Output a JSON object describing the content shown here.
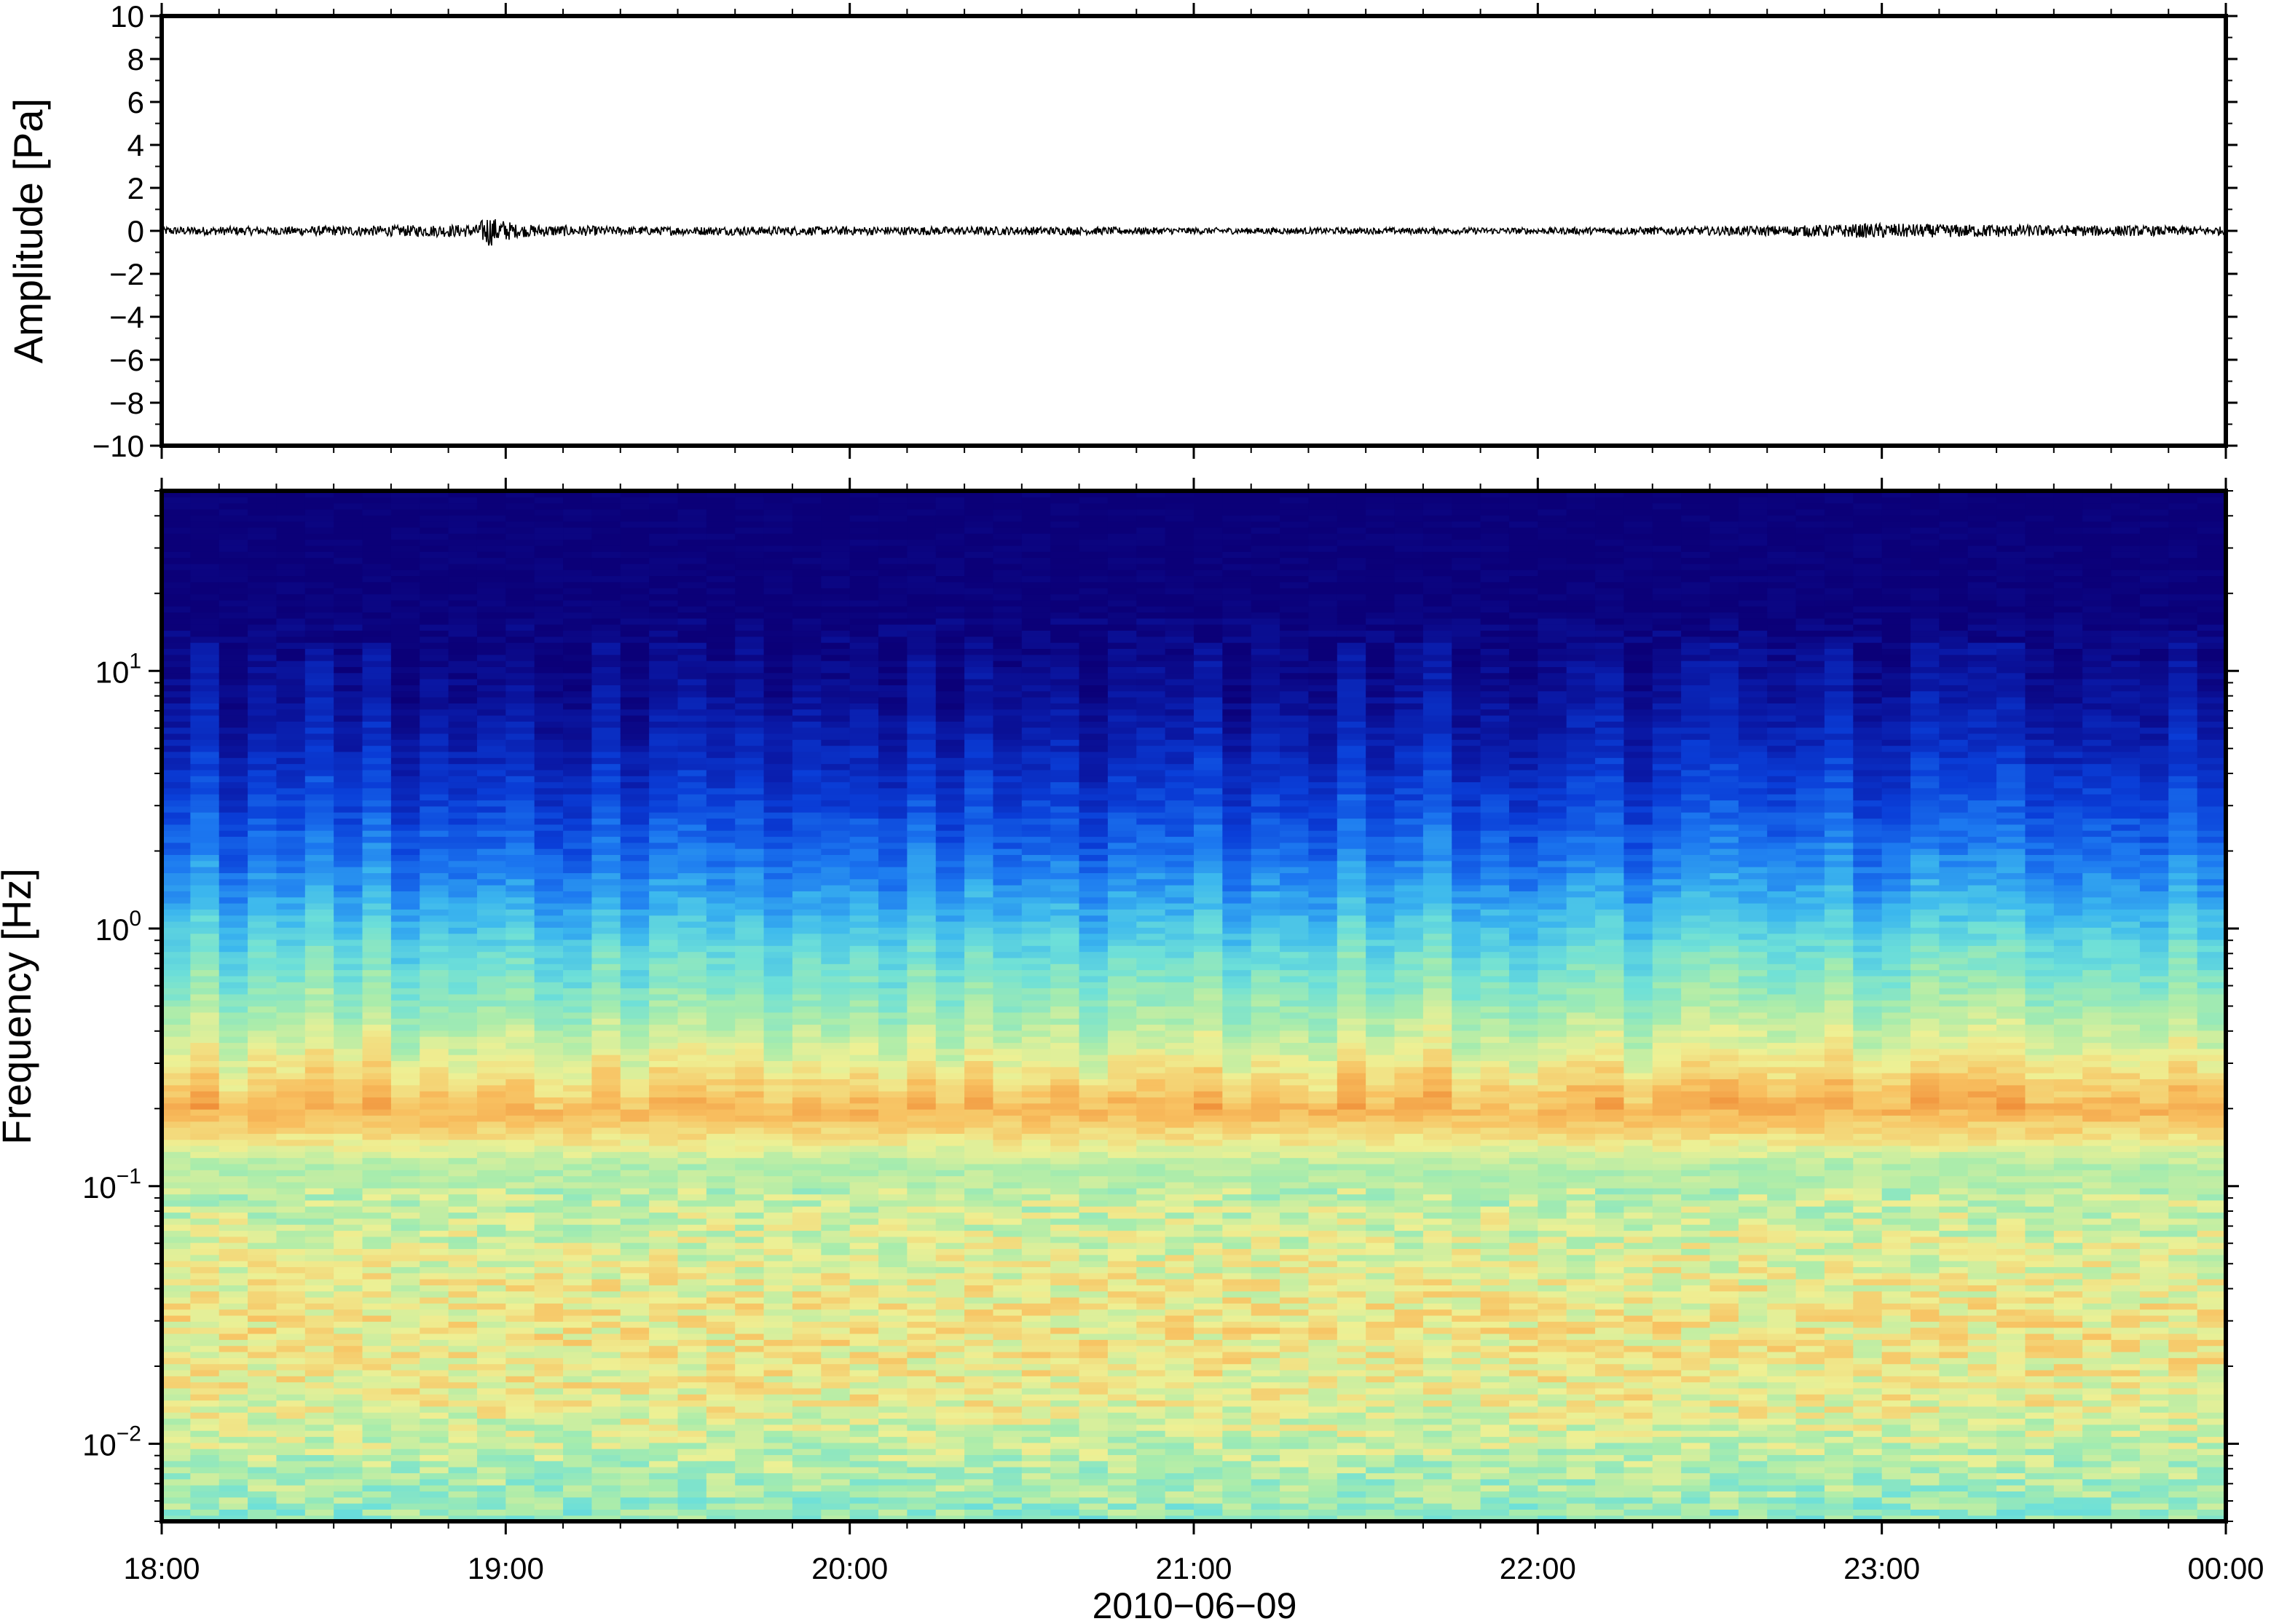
{
  "chart_data": [
    {
      "type": "line",
      "panel": "waveform",
      "xlabel": "",
      "ylabel": "Amplitude [Pa]",
      "ylim": [
        -10,
        10
      ],
      "yticks": [
        10,
        8,
        6,
        4,
        2,
        0,
        -2,
        -4,
        -6,
        -8,
        -10
      ],
      "yticks_display": [
        "10",
        "8",
        "6",
        "4",
        "2",
        "0",
        "−2",
        "−4",
        "−6",
        "−8",
        "−10"
      ],
      "series": [
        {
          "color": "#000000",
          "x": [
            "18:00",
            "18:20",
            "18:40",
            "18:55",
            "18:57",
            "18:58",
            "19:00",
            "19:02",
            "19:20",
            "19:40",
            "20:00",
            "20:30",
            "21:00",
            "21:30",
            "22:00",
            "22:30",
            "22:45",
            "23:00",
            "23:10",
            "23:20",
            "23:30",
            "23:40",
            "24:00"
          ],
          "y_envelope": [
            0.2,
            0.2,
            0.25,
            0.3,
            0.8,
            0.6,
            0.5,
            0.3,
            0.2,
            0.2,
            0.2,
            0.2,
            0.15,
            0.15,
            0.15,
            0.2,
            0.25,
            0.35,
            0.3,
            0.3,
            0.25,
            0.25,
            0.2
          ]
        }
      ]
    },
    {
      "type": "heatmap",
      "panel": "spectrogram",
      "xlabel": "2010−06−09",
      "ylabel": "Frequency [Hz]",
      "yscale": "log",
      "ylim": [
        0.005,
        50
      ],
      "yticks": [
        {
          "base": "10",
          "exp": "1",
          "value": 10
        },
        {
          "base": "10",
          "exp": "0",
          "value": 1
        },
        {
          "base": "10",
          "exp": "−1",
          "value": 0.1
        },
        {
          "base": "10",
          "exp": "−2",
          "value": 0.01
        }
      ],
      "colormap": [
        "#0b0078",
        "#0a1aa8",
        "#0a3ed8",
        "#1c78f0",
        "#3cb8ee",
        "#6ee0d8",
        "#a8ecac",
        "#eef094",
        "#f8c060",
        "#f0903a"
      ],
      "microbarom_band_hz": 0.19,
      "profile_freqs_hz": [
        50,
        15,
        8,
        5,
        3,
        2,
        1.3,
        0.8,
        0.5,
        0.35,
        0.25,
        0.2,
        0.15,
        0.12,
        0.08,
        0.05,
        0.03,
        0.015,
        0.008,
        0.005
      ],
      "profile_levels": [
        0.0,
        0.02,
        0.08,
        0.15,
        0.24,
        0.32,
        0.42,
        0.55,
        0.65,
        0.74,
        0.85,
        0.92,
        0.8,
        0.68,
        0.72,
        0.76,
        0.8,
        0.78,
        0.68,
        0.62
      ]
    }
  ],
  "x_axis": {
    "tick_labels": [
      "18:00",
      "19:00",
      "20:00",
      "21:00",
      "22:00",
      "23:00",
      "00:00"
    ],
    "date_label": "2010−06−09"
  }
}
